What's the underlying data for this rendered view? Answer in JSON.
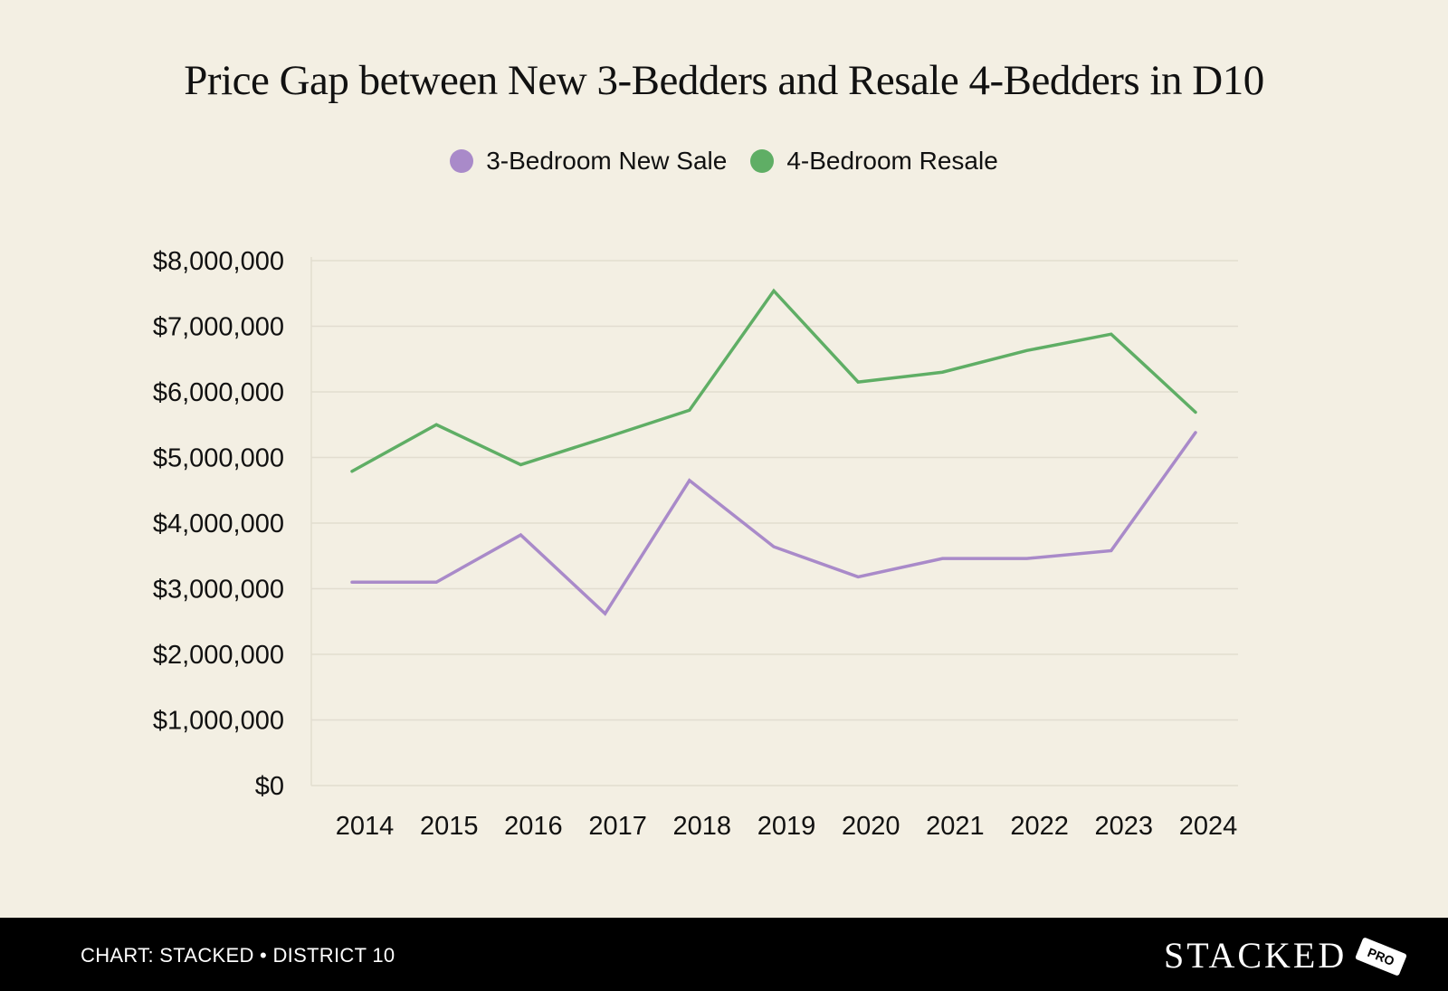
{
  "chart_data": {
    "type": "line",
    "title": "Price Gap between New 3-Bedders and Resale 4-Bedders in D10",
    "categories": [
      "2014",
      "2015",
      "2016",
      "2017",
      "2018",
      "2019",
      "2020",
      "2021",
      "2022",
      "2023",
      "2024"
    ],
    "series": [
      {
        "name": "3-Bedroom New Sale",
        "color": "#a98ac9",
        "values": [
          3100000,
          3100000,
          3820000,
          2620000,
          4650000,
          3640000,
          3180000,
          3460000,
          3460000,
          3580000,
          5380000
        ]
      },
      {
        "name": "4-Bedroom Resale",
        "color": "#5fae65",
        "values": [
          4790000,
          5500000,
          4890000,
          5300000,
          5720000,
          7540000,
          6150000,
          6300000,
          6630000,
          6880000,
          5690000
        ]
      }
    ],
    "ylim": [
      0,
      8000000
    ],
    "yticks": [
      "$0",
      "$1,000,000",
      "$2,000,000",
      "$3,000,000",
      "$4,000,000",
      "$5,000,000",
      "$6,000,000",
      "$7,000,000",
      "$8,000,000"
    ],
    "grid": true,
    "legend_position": "top"
  },
  "footer": {
    "source": "CHART: STACKED • DISTRICT 10",
    "brand": "STACKED",
    "badge": "PRO"
  }
}
